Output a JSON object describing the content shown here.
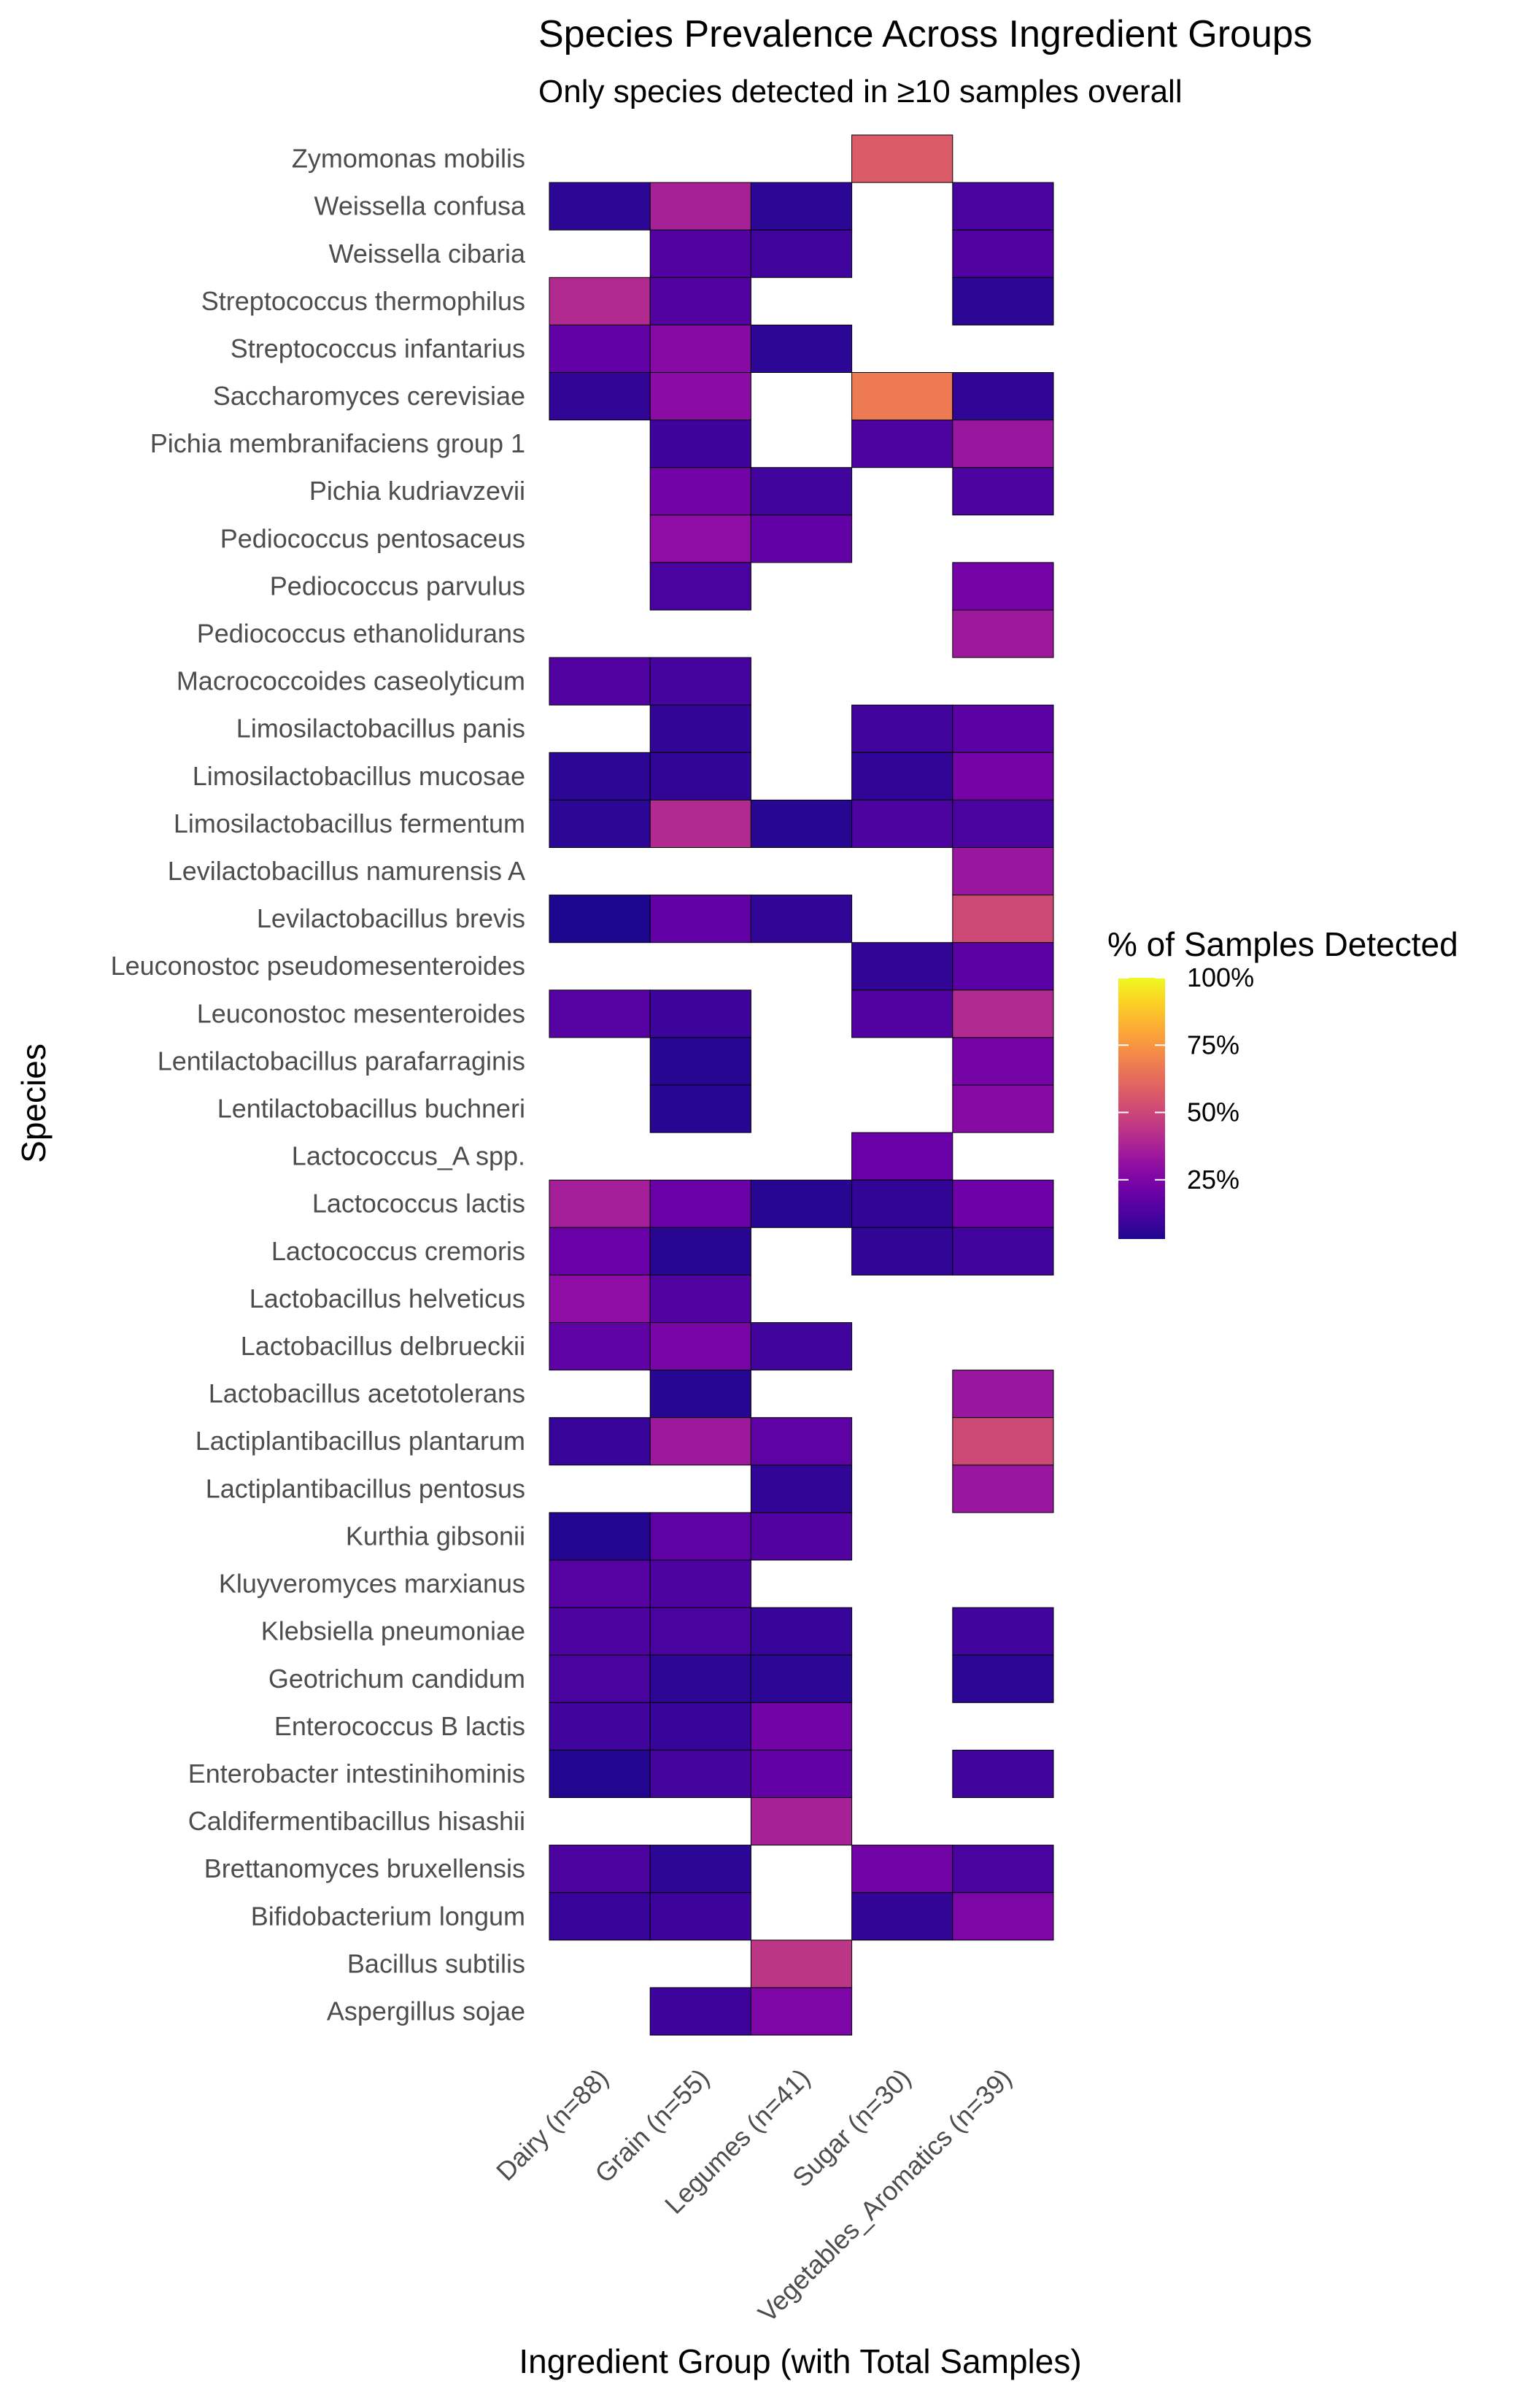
{
  "chart_data": {
    "type": "heatmap",
    "title": "Species Prevalence Across Ingredient Groups",
    "subtitle": "Only species detected in ≥10 samples overall",
    "xlabel": "Ingredient Group (with Total Samples)",
    "ylabel": "Species",
    "x_categories": [
      "Dairy (n=88)",
      "Grain (n=55)",
      "Legumes (n=41)",
      "Sugar (n=30)",
      "Vegetables_Aromatics (n=39)"
    ],
    "y_categories": [
      "Zymomonas mobilis",
      "Weissella confusa",
      "Weissella cibaria",
      "Streptococcus thermophilus",
      "Streptococcus infantarius",
      "Saccharomyces cerevisiae",
      "Pichia membranifaciens group 1",
      "Pichia kudriavzevii",
      "Pediococcus pentosaceus",
      "Pediococcus parvulus",
      "Pediococcus ethanolidurans",
      "Macrococcoides caseolyticum",
      "Limosilactobacillus panis",
      "Limosilactobacillus mucosae",
      "Limosilactobacillus fermentum",
      "Levilactobacillus namurensis A",
      "Levilactobacillus brevis",
      "Leuconostoc pseudomesenteroides",
      "Leuconostoc mesenteroides",
      "Lentilactobacillus parafarraginis",
      "Lentilactobacillus buchneri",
      "Lactococcus_A spp.",
      "Lactococcus lactis",
      "Lactococcus cremoris",
      "Lactobacillus helveticus",
      "Lactobacillus delbrueckii",
      "Lactobacillus acetotolerans",
      "Lactiplantibacillus plantarum",
      "Lactiplantibacillus pentosus",
      "Kurthia gibsonii",
      "Kluyveromyces marxianus",
      "Klebsiella pneumoniae",
      "Geotrichum candidum",
      "Enterococcus B lactis",
      "Enterobacter intestinihominis",
      "Caldifermentibacillus hisashii",
      "Brettanomyces bruxellensis",
      "Bifidobacterium longum",
      "Bacillus subtilis",
      "Aspergillus sojae"
    ],
    "values_percent": [
      [
        null,
        null,
        null,
        57,
        null
      ],
      [
        6,
        37,
        6,
        null,
        12
      ],
      [
        null,
        14,
        10,
        null,
        14
      ],
      [
        40,
        14,
        null,
        null,
        6
      ],
      [
        18,
        28,
        6,
        null,
        null
      ],
      [
        7,
        29,
        null,
        67,
        7
      ],
      [
        null,
        9,
        null,
        13,
        33
      ],
      [
        null,
        22,
        10,
        null,
        13
      ],
      [
        null,
        30,
        18,
        null,
        null
      ],
      [
        null,
        12,
        null,
        null,
        23
      ],
      [
        null,
        null,
        null,
        null,
        34
      ],
      [
        14,
        11,
        null,
        null,
        null
      ],
      [
        null,
        7,
        null,
        10,
        16
      ],
      [
        6,
        7,
        null,
        7,
        23
      ],
      [
        6,
        40,
        5,
        13,
        12
      ],
      [
        null,
        null,
        null,
        null,
        33
      ],
      [
        3,
        18,
        7,
        null,
        51
      ],
      [
        null,
        null,
        null,
        7,
        16
      ],
      [
        15,
        9,
        null,
        14,
        40
      ],
      [
        null,
        5,
        null,
        null,
        23
      ],
      [
        null,
        5,
        null,
        null,
        28
      ],
      [
        null,
        null,
        null,
        20,
        null
      ],
      [
        36,
        20,
        5,
        7,
        21
      ],
      [
        20,
        5,
        null,
        7,
        10
      ],
      [
        30,
        14,
        null,
        null,
        null
      ],
      [
        17,
        24,
        10,
        null,
        null
      ],
      [
        null,
        5,
        null,
        null,
        33
      ],
      [
        8,
        34,
        17,
        null,
        51
      ],
      [
        null,
        null,
        7,
        null,
        33
      ],
      [
        4,
        17,
        14,
        null,
        null
      ],
      [
        15,
        13,
        null,
        null,
        null
      ],
      [
        13,
        12,
        8,
        null,
        10
      ],
      [
        12,
        6,
        6,
        null,
        6
      ],
      [
        10,
        8,
        22,
        null,
        null
      ],
      [
        4,
        11,
        18,
        null,
        10
      ],
      [
        null,
        null,
        37,
        null,
        null
      ],
      [
        13,
        6,
        null,
        22,
        12
      ],
      [
        8,
        9,
        null,
        7,
        25
      ],
      [
        null,
        null,
        44,
        null,
        null
      ],
      [
        null,
        9,
        25,
        null,
        null
      ]
    ],
    "colorscale": "plasma",
    "color_range": [
      0,
      100
    ],
    "legend": {
      "title": "% of Samples Detected",
      "ticks": [
        "25%",
        "50%",
        "75%",
        "100%"
      ],
      "tick_values": [
        25,
        50,
        75,
        100
      ],
      "placement": "right"
    },
    "grid": false
  }
}
